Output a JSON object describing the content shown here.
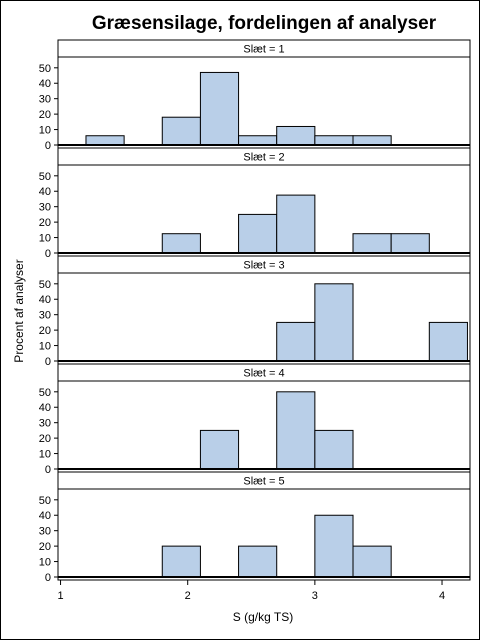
{
  "chart_data": {
    "type": "bar",
    "title": "Græsensilage, fordelingen af analyser",
    "xlabel": "S (g/kg TS)",
    "ylabel": "Procent af analyser",
    "xlim": [
      0.98,
      4.22
    ],
    "ylim": [
      0,
      57
    ],
    "x_ticks": [
      "1",
      "2",
      "3",
      "4"
    ],
    "y_ticks": [
      "0",
      "10",
      "20",
      "30",
      "40",
      "50"
    ],
    "bin_width": 0.3,
    "bar_color": "#b9cfe8",
    "panels": [
      {
        "label": "Slæt = 1",
        "bins": [
          {
            "x0": 1.2,
            "value": 6
          },
          {
            "x0": 1.8,
            "value": 18
          },
          {
            "x0": 2.1,
            "value": 47
          },
          {
            "x0": 2.4,
            "value": 6
          },
          {
            "x0": 2.7,
            "value": 12
          },
          {
            "x0": 3.0,
            "value": 6
          },
          {
            "x0": 3.3,
            "value": 6
          }
        ]
      },
      {
        "label": "Slæt = 2",
        "bins": [
          {
            "x0": 1.8,
            "value": 12.5
          },
          {
            "x0": 2.4,
            "value": 25
          },
          {
            "x0": 2.7,
            "value": 37.5
          },
          {
            "x0": 3.3,
            "value": 12.5
          },
          {
            "x0": 3.6,
            "value": 12.5
          }
        ]
      },
      {
        "label": "Slæt = 3",
        "bins": [
          {
            "x0": 2.7,
            "value": 25
          },
          {
            "x0": 3.0,
            "value": 50
          },
          {
            "x0": 3.9,
            "value": 25
          }
        ]
      },
      {
        "label": "Slæt = 4",
        "bins": [
          {
            "x0": 2.1,
            "value": 25
          },
          {
            "x0": 2.7,
            "value": 50
          },
          {
            "x0": 3.0,
            "value": 25
          }
        ]
      },
      {
        "label": "Slæt = 5",
        "bins": [
          {
            "x0": 1.8,
            "value": 20
          },
          {
            "x0": 2.4,
            "value": 20
          },
          {
            "x0": 3.0,
            "value": 40
          },
          {
            "x0": 3.3,
            "value": 20
          }
        ]
      }
    ]
  }
}
